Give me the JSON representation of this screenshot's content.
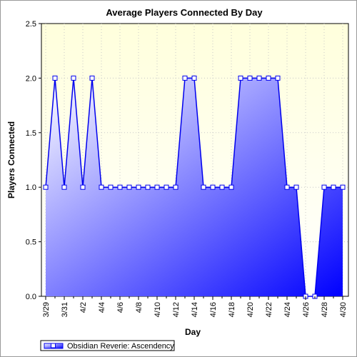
{
  "chart_data": {
    "type": "area",
    "title": "Average Players Connected By Day",
    "xlabel": "Day",
    "ylabel": "Players Connected",
    "x_range": [
      "3/29",
      "4/30"
    ],
    "ylim": [
      0,
      2.5
    ],
    "y_ticks": [
      "0.0",
      "0.5",
      "1.0",
      "1.5",
      "2.0",
      "2.5"
    ],
    "x_tick_labels": [
      "3/29",
      "3/31",
      "4/2",
      "4/4",
      "4/6",
      "4/8",
      "4/10",
      "4/12",
      "4/14",
      "4/16",
      "4/18",
      "4/20",
      "4/22",
      "4/24",
      "4/26",
      "4/28",
      "4/30"
    ],
    "grid": true,
    "legend_position": "bottom-left",
    "series": [
      {
        "name": "Obsidian Reverie: Ascendency",
        "color": "#0000ee",
        "x": [
          "3/29",
          "3/30",
          "3/31",
          "4/1",
          "4/2",
          "4/3",
          "4/4",
          "4/5",
          "4/6",
          "4/7",
          "4/8",
          "4/9",
          "4/10",
          "4/11",
          "4/12",
          "4/13",
          "4/14",
          "4/15",
          "4/16",
          "4/17",
          "4/18",
          "4/19",
          "4/20",
          "4/21",
          "4/22",
          "4/23",
          "4/24",
          "4/25",
          "4/26",
          "4/27",
          "4/28",
          "4/29",
          "4/30"
        ],
        "values": [
          1,
          2,
          1,
          2,
          1,
          2,
          1,
          1,
          1,
          1,
          1,
          1,
          1,
          1,
          1,
          2,
          2,
          1,
          1,
          1,
          1,
          2,
          2,
          2,
          2,
          2,
          1,
          1,
          0,
          0,
          1,
          1,
          1
        ]
      }
    ]
  }
}
